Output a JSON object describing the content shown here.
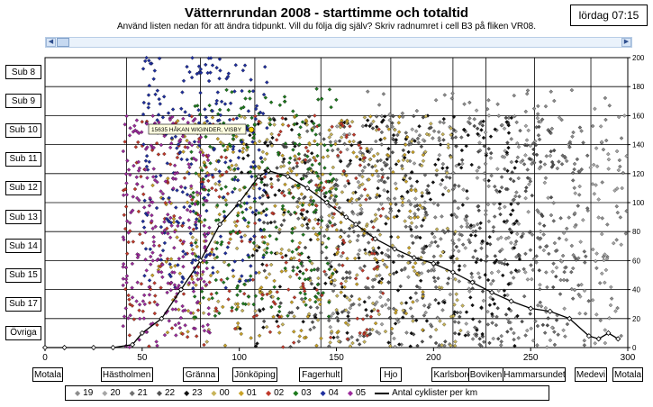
{
  "header": {
    "title": "Vätternrundan 2008 - starttimme och totaltid",
    "subtitle": "Använd listen nedan för att ändra tidpunkt. Vill du följa dig själv? Skriv radnumret i cell B3 på fliken VR08.",
    "clock": "lördag 07:15"
  },
  "sub_buttons": [
    "Sub 8",
    "Sub 9",
    "Sub 10",
    "Sub 11",
    "Sub 12",
    "Sub 13",
    "Sub 14",
    "Sub 15",
    "Sub 17",
    "Övriga"
  ],
  "location_buttons": [
    "Motala",
    "Hästholmen",
    "Gränna",
    "Jönköping",
    "Fagerhult",
    "Hjo",
    "Karlsborg",
    "Boviken",
    "Hammarsundet",
    "Medevi",
    "Motala"
  ],
  "tooltip": "15635 HÅKAN WIGINDER, VISBY",
  "legend": {
    "items": [
      "19",
      "20",
      "21",
      "22",
      "23",
      "00",
      "01",
      "02",
      "03",
      "04",
      "05"
    ],
    "line_label": "Antal cyklister per km"
  },
  "colors": {
    "19": "#8c8c8c",
    "20": "#a6a6a6",
    "21": "#707070",
    "22": "#505050",
    "23": "#111111",
    "00": "#c8b45a",
    "01": "#c9a227",
    "02": "#c0392b",
    "03": "#1e7a1e",
    "04": "#1f2f9e",
    "05": "#9b2a9b",
    "tooltip_bg": "#ffffe0",
    "highlight": "#ffd400"
  },
  "chart_data": {
    "type": "scatter",
    "title": "Vätternrundan 2008 - starttimme och totaltid",
    "x_axis": {
      "range": [
        0,
        300
      ],
      "ticks": [
        "0",
        "50",
        "100",
        "150",
        "200",
        "250",
        "300"
      ],
      "unit": "km"
    },
    "y2_axis": {
      "range": [
        0,
        200
      ],
      "ticks": [
        "0",
        "20",
        "40",
        "60",
        "80",
        "100",
        "120",
        "140",
        "160",
        "180",
        "200"
      ]
    },
    "grid": true,
    "legend_placement": "bottom",
    "checkpoints_km": {
      "Motala": 0,
      "Hästholmen": 42,
      "Gränna": 80,
      "Jönköping": 108,
      "Fagerhult": 142,
      "Hjo": 178,
      "Karlsborg": 210,
      "Boviken": 227,
      "Hammarsundet": 252,
      "Medevi": 281,
      "Motala_end": 300
    },
    "series": [
      {
        "name": "19",
        "x_range": [
          160,
          300
        ],
        "y_range": [
          0,
          178
        ]
      },
      {
        "name": "20",
        "x_range": [
          145,
          300
        ],
        "y_range": [
          0,
          165
        ]
      },
      {
        "name": "21",
        "x_range": [
          130,
          280
        ],
        "y_range": [
          0,
          160
        ]
      },
      {
        "name": "22",
        "x_range": [
          110,
          265
        ],
        "y_range": [
          0,
          160
        ]
      },
      {
        "name": "23",
        "x_range": [
          100,
          245
        ],
        "y_range": [
          0,
          160
        ]
      },
      {
        "name": "00",
        "x_range": [
          75,
          215
        ],
        "y_range": [
          0,
          160
        ]
      },
      {
        "name": "01",
        "x_range": [
          55,
          195
        ],
        "y_range": [
          0,
          160
        ]
      },
      {
        "name": "02",
        "x_range": [
          40,
          175
        ],
        "y_range": [
          0,
          160
        ]
      },
      {
        "name": "03",
        "x_range": [
          75,
          150
        ],
        "y_range": [
          20,
          180
        ]
      },
      {
        "name": "04",
        "x_range": [
          50,
          115
        ],
        "y_range": [
          40,
          200
        ]
      },
      {
        "name": "05",
        "x_range": [
          40,
          85
        ],
        "y_range": [
          0,
          160
        ]
      }
    ],
    "line_series": {
      "name": "Antal cyklister per km",
      "x": [
        0,
        10,
        25,
        35,
        45,
        50,
        60,
        70,
        80,
        90,
        100,
        110,
        115,
        125,
        135,
        145,
        155,
        160,
        170,
        180,
        190,
        200,
        210,
        220,
        230,
        240,
        250,
        260,
        270,
        280,
        285,
        290,
        295
      ],
      "y": [
        0,
        0,
        0,
        0,
        2,
        10,
        20,
        40,
        60,
        85,
        100,
        118,
        122,
        118,
        110,
        100,
        90,
        85,
        75,
        68,
        62,
        58,
        52,
        45,
        38,
        32,
        27,
        25,
        20,
        8,
        6,
        10,
        6
      ]
    }
  }
}
